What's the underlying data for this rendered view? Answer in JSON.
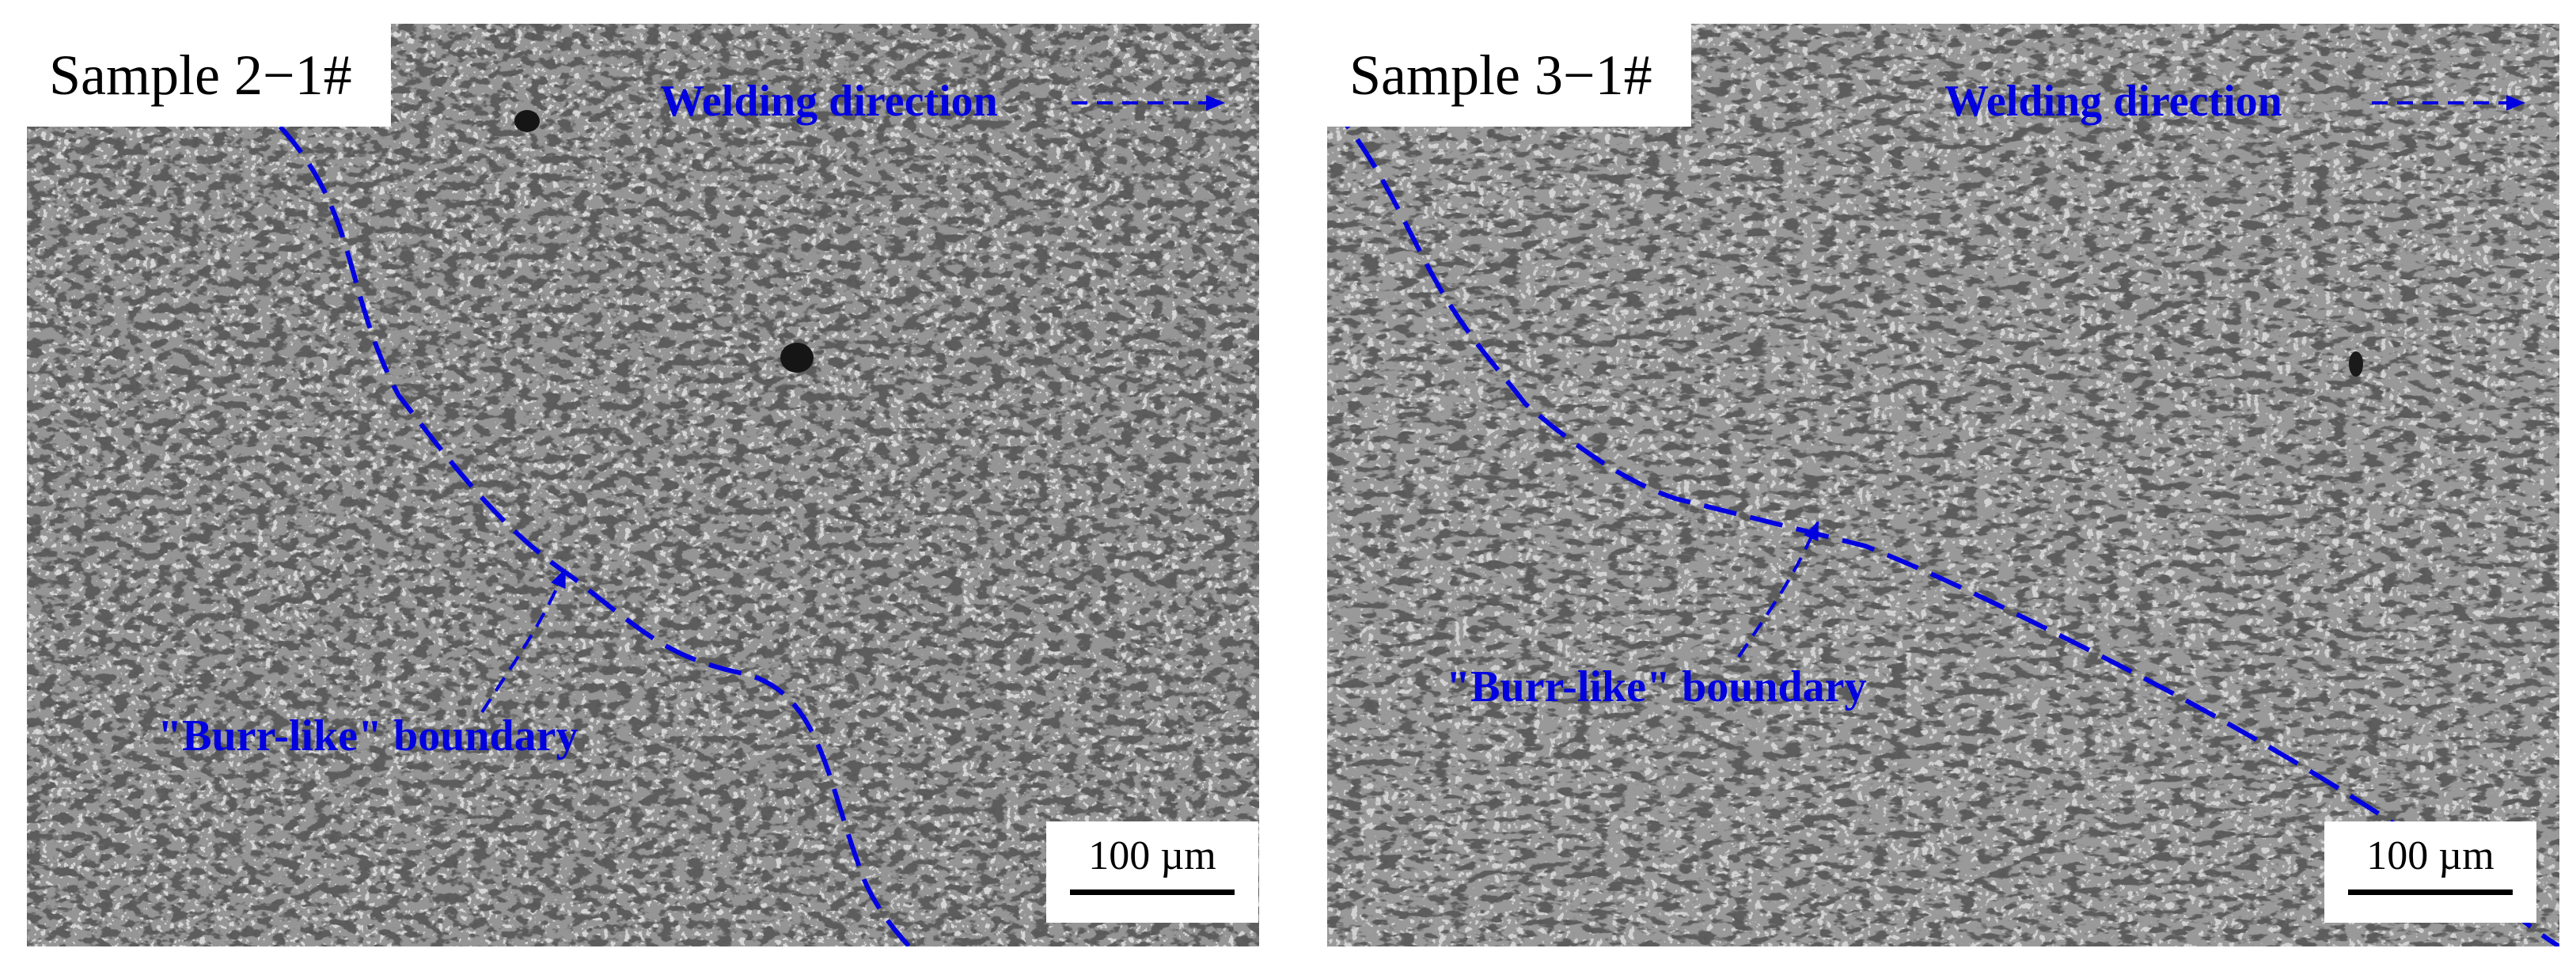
{
  "panels": [
    {
      "label": "Sample 2−1#",
      "direction_label": "Welding direction",
      "boundary_label": "\"Burr-like\" boundary",
      "scale_label": "100 µm"
    },
    {
      "label": "Sample 3−1#",
      "direction_label": "Welding direction",
      "boundary_label": "\"Burr-like\" boundary",
      "scale_label": "100 µm"
    }
  ],
  "colors": {
    "annotation": "#0000e0",
    "background": "#d4d4d4",
    "dendrite": "#1a1a1a"
  }
}
